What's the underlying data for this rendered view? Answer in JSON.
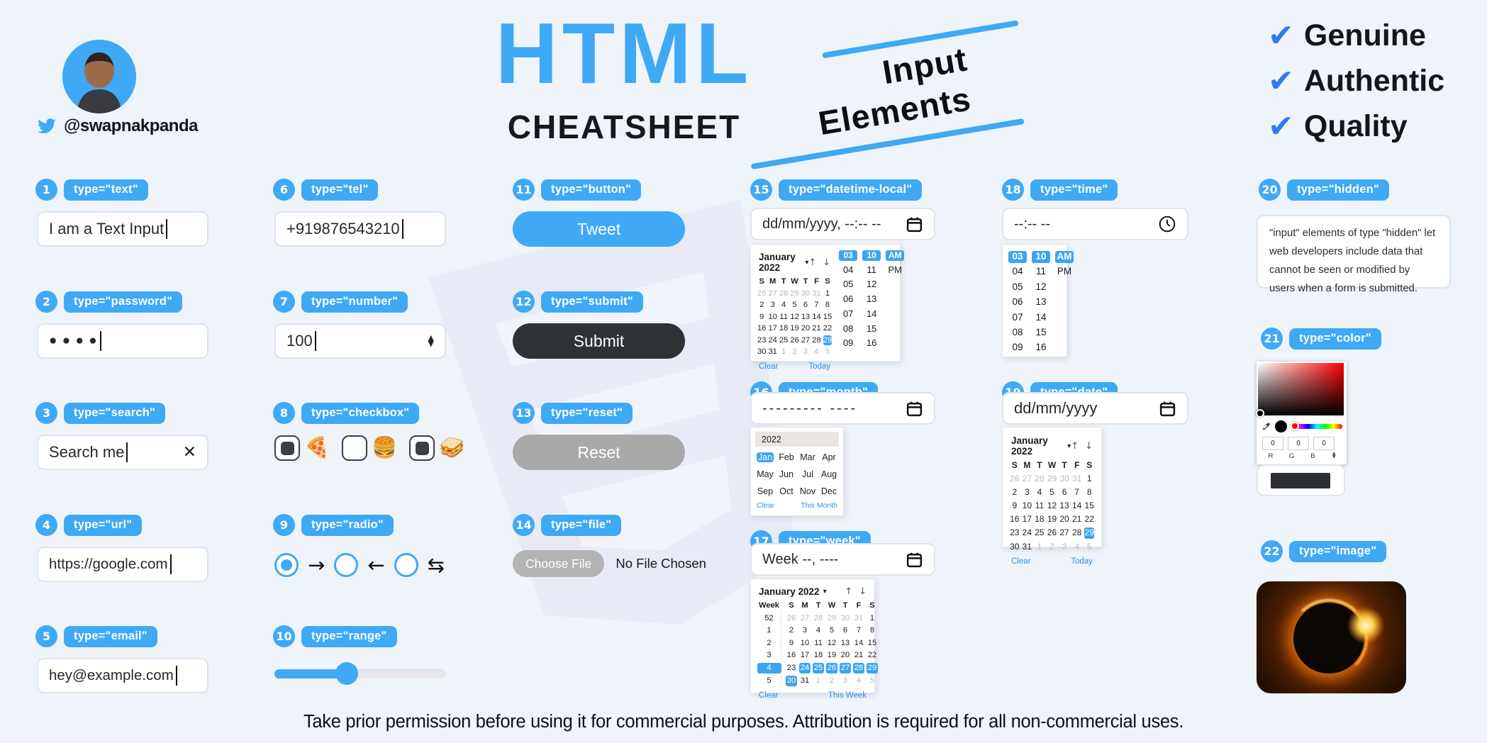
{
  "colors": {
    "background": "#eef4f9",
    "accent_blue": "#3fa9f5",
    "check_blue": "#2c7bf2",
    "submit_dark": "#2f3234",
    "reset_gray": "#a9a9a9",
    "file_gray": "#b4b4b4",
    "selected_chip": "#3da4f2",
    "color_swatch": "#2b2e33",
    "hue_knob": "#ff0000"
  },
  "header": {
    "handle": "@swapnakpanda",
    "title": "HTML",
    "subtitle": "CHEATSHEET",
    "topic_line1": "Input",
    "topic_line2": "Elements",
    "badges": [
      "Genuine",
      "Authentic",
      "Quality"
    ]
  },
  "icons": {
    "check": "✔",
    "caret_down": "▾",
    "arrow_up": "↑",
    "arrow_down": "↓",
    "clear_x": "✕",
    "step_up": "▲",
    "step_down": "▼"
  },
  "items": {
    "text": {
      "num": "1",
      "label": "type=\"text\"",
      "value": "I am a Text Input"
    },
    "password": {
      "num": "2",
      "label": "type=\"password\"",
      "dots": "● ● ● ●"
    },
    "search": {
      "num": "3",
      "label": "type=\"search\"",
      "value": "Search me"
    },
    "url": {
      "num": "4",
      "label": "type=\"url\"",
      "value": "https://google.com"
    },
    "email": {
      "num": "5",
      "label": "type=\"email\"",
      "value": "hey@example.com"
    },
    "tel": {
      "num": "6",
      "label": "type=\"tel\"",
      "value": "+919876543210"
    },
    "number": {
      "num": "7",
      "label": "type=\"number\"",
      "value": "100"
    },
    "checkbox": {
      "num": "8",
      "label": "type=\"checkbox\"",
      "options": [
        {
          "checked": true,
          "emoji": "🍕"
        },
        {
          "checked": false,
          "emoji": "🍔"
        },
        {
          "checked": true,
          "emoji": "🥪"
        }
      ]
    },
    "radio": {
      "num": "9",
      "label": "type=\"radio\"",
      "options": [
        {
          "selected": true,
          "arrow": "→"
        },
        {
          "selected": false,
          "arrow": "←"
        },
        {
          "selected": false,
          "arrow": "⇆"
        }
      ]
    },
    "range": {
      "num": "10",
      "label": "type=\"range\"",
      "percent": 42
    },
    "button": {
      "num": "11",
      "label": "type=\"button\"",
      "text": "Tweet"
    },
    "submit": {
      "num": "12",
      "label": "type=\"submit\"",
      "text": "Submit"
    },
    "reset": {
      "num": "13",
      "label": "type=\"reset\"",
      "text": "Reset"
    },
    "file": {
      "num": "14",
      "label": "type=\"file\"",
      "button_text": "Choose File",
      "status_text": "No File Chosen"
    },
    "datetime": {
      "num": "15",
      "label": "type=\"datetime-local\"",
      "placeholder": "dd/mm/yyyy, --:-- --"
    },
    "month": {
      "num": "16",
      "label": "type=\"month\"",
      "placeholder": "--------- ----"
    },
    "week": {
      "num": "17",
      "label": "type=\"week\"",
      "placeholder": "Week --, ----"
    },
    "time": {
      "num": "18",
      "label": "type=\"time\"",
      "placeholder": "--:-- --"
    },
    "date": {
      "num": "19",
      "label": "type=\"date\"",
      "placeholder": "dd/mm/yyyy"
    },
    "hidden": {
      "num": "20",
      "label": "type=\"hidden\"",
      "description": "\"input\" elements of type \"hidden\" let web developers include data that cannot be seen or modified by users when a form is submitted."
    },
    "color": {
      "num": "21",
      "label": "type=\"color\"",
      "r": "0",
      "g": "0",
      "b": "0",
      "r_label": "R",
      "g_label": "G",
      "b_label": "B"
    },
    "image": {
      "num": "22",
      "label": "type=\"image\""
    }
  },
  "calendar": {
    "month_label": "January 2022",
    "day_headers": [
      "S",
      "M",
      "T",
      "W",
      "T",
      "F",
      "S"
    ],
    "weeks": [
      [
        26,
        27,
        28,
        29,
        30,
        31,
        1
      ],
      [
        2,
        3,
        4,
        5,
        6,
        7,
        8
      ],
      [
        9,
        10,
        11,
        12,
        13,
        14,
        15
      ],
      [
        16,
        17,
        18,
        19,
        20,
        21,
        22
      ],
      [
        23,
        24,
        25,
        26,
        27,
        28,
        29
      ],
      [
        30,
        31,
        1,
        2,
        3,
        4,
        5
      ]
    ],
    "selected_cell": [
      4,
      29
    ],
    "clear_label": "Clear",
    "today_label": "Today"
  },
  "week_calendar": {
    "month_label": "January 2022",
    "week_header": "Week",
    "week_numbers": [
      "52",
      "1",
      "2",
      "3",
      "4",
      "5"
    ],
    "selected_week": "4",
    "day_headers": [
      "S",
      "M",
      "T",
      "W",
      "T",
      "F",
      "S"
    ],
    "weeks": [
      [
        26,
        27,
        28,
        29,
        30,
        31,
        1
      ],
      [
        2,
        3,
        4,
        5,
        6,
        7,
        8
      ],
      [
        9,
        10,
        11,
        12,
        13,
        14,
        15
      ],
      [
        16,
        17,
        18,
        19,
        20,
        21,
        22
      ],
      [
        23,
        24,
        25,
        26,
        27,
        28,
        29
      ],
      [
        30,
        31,
        1,
        2,
        3,
        4,
        5
      ]
    ],
    "highlight_cells": [
      [
        4,
        24
      ],
      [
        4,
        25
      ],
      [
        4,
        26
      ],
      [
        4,
        27
      ],
      [
        4,
        28
      ],
      [
        4,
        29
      ],
      [
        5,
        30
      ]
    ],
    "clear_label": "Clear",
    "this_week_label": "This Week"
  },
  "month_picker": {
    "year": "2022",
    "months": [
      "Jan",
      "Feb",
      "Mar",
      "Apr",
      "May",
      "Jun",
      "Jul",
      "Aug",
      "Sep",
      "Oct",
      "Nov",
      "Dec"
    ],
    "selected": "Jan",
    "clear_label": "Clear",
    "this_month_label": "This Month"
  },
  "time_picker": {
    "hours": [
      "03",
      "04",
      "05",
      "06",
      "07",
      "08",
      "09"
    ],
    "minutes": [
      "10",
      "11",
      "12",
      "13",
      "14",
      "15",
      "16"
    ],
    "meridiem": [
      "AM",
      "PM"
    ],
    "selected": {
      "hour": "03",
      "minute": "10",
      "meridiem": "AM"
    }
  },
  "footer": {
    "text": "Take prior permission before using it for commercial purposes. Attribution is required for all non-commercial uses."
  }
}
